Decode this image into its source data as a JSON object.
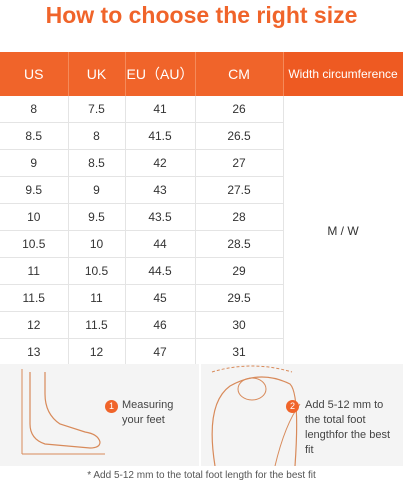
{
  "header": {
    "title": "How to choose the right size"
  },
  "table": {
    "columns": [
      "US",
      "UK",
      "EU（AU）",
      "CM",
      "Width circumference"
    ],
    "rows": [
      [
        8,
        7.5,
        41,
        26
      ],
      [
        8.5,
        8,
        41.5,
        26.5
      ],
      [
        9,
        8.5,
        42,
        27
      ],
      [
        9.5,
        9,
        43,
        27.5
      ],
      [
        10,
        9.5,
        43.5,
        28
      ],
      [
        10.5,
        10,
        44,
        28.5
      ],
      [
        11,
        10.5,
        44.5,
        29
      ],
      [
        11.5,
        11,
        45,
        29.5
      ],
      [
        12,
        11.5,
        46,
        30
      ],
      [
        13,
        12,
        47,
        31
      ]
    ],
    "width_value": "M / W"
  },
  "notes": [
    {
      "number": "1",
      "text": "Measuring your feet"
    },
    {
      "number": "2",
      "text": "Add 5-12 mm to the total foot lengthfor the best fit"
    }
  ],
  "footnote": "* Add 5-12 mm to the total foot length for the best fit"
}
